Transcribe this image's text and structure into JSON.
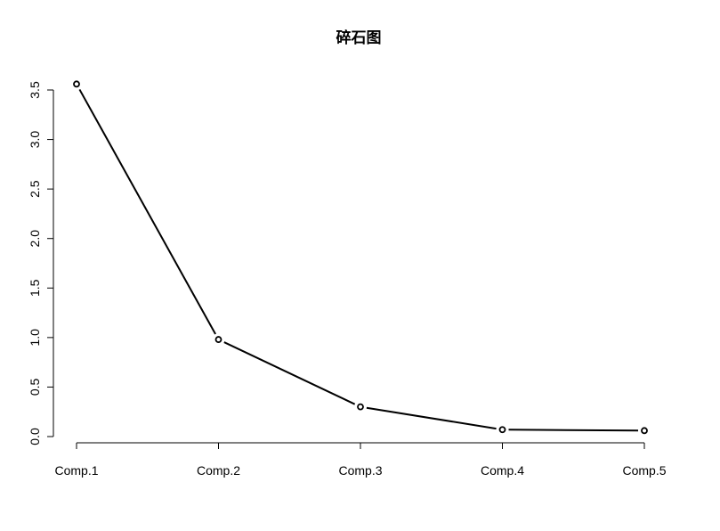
{
  "chart_data": {
    "type": "line",
    "title": "碎石图",
    "xlabel": "",
    "ylabel": "",
    "categories": [
      "Comp.1",
      "Comp.2",
      "Comp.3",
      "Comp.4",
      "Comp.5"
    ],
    "series": [
      {
        "values": [
          3.56,
          0.98,
          0.3,
          0.07,
          0.06
        ]
      }
    ],
    "ylim": [
      0,
      3.5
    ],
    "yticks": [
      "0.0",
      "0.5",
      "1.0",
      "1.5",
      "2.0",
      "2.5",
      "3.0",
      "3.5"
    ],
    "grid": false,
    "legend": "none",
    "colors": {
      "line": "#000000",
      "ylabel": "#7fd0d0"
    }
  }
}
